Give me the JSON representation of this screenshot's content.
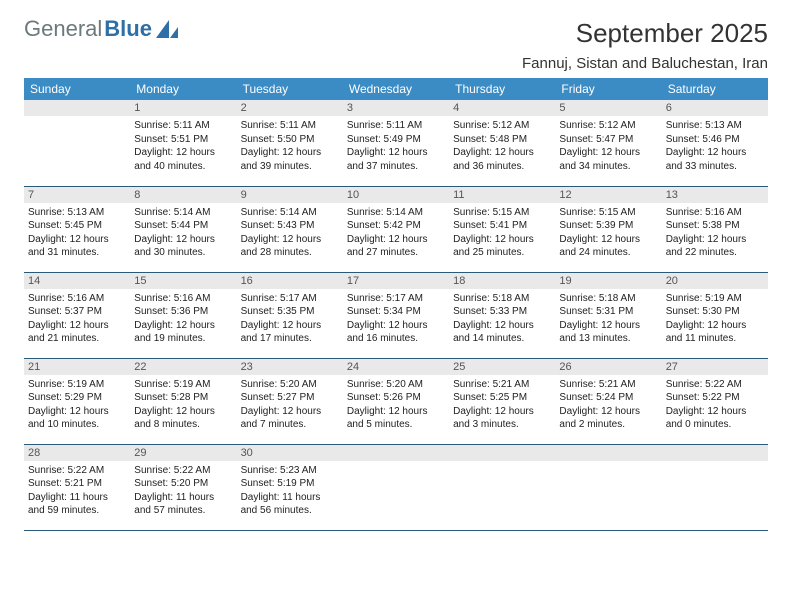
{
  "brand": {
    "part1": "General",
    "part2": "Blue"
  },
  "title": "September 2025",
  "location": "Fannuj, Sistan and Baluchestan, Iran",
  "weekdays": [
    "Sunday",
    "Monday",
    "Tuesday",
    "Wednesday",
    "Thursday",
    "Friday",
    "Saturday"
  ],
  "colors": {
    "header_bg": "#3b8bc4",
    "header_text": "#ffffff",
    "daynum_bg": "#e9e9e9",
    "row_border": "#2a5a7a",
    "logo_gray": "#6c7a7d",
    "logo_blue": "#2f6fa7"
  },
  "start_offset": 1,
  "days": [
    {
      "n": "1",
      "sunrise": "5:11 AM",
      "sunset": "5:51 PM",
      "daylight": "12 hours and 40 minutes."
    },
    {
      "n": "2",
      "sunrise": "5:11 AM",
      "sunset": "5:50 PM",
      "daylight": "12 hours and 39 minutes."
    },
    {
      "n": "3",
      "sunrise": "5:11 AM",
      "sunset": "5:49 PM",
      "daylight": "12 hours and 37 minutes."
    },
    {
      "n": "4",
      "sunrise": "5:12 AM",
      "sunset": "5:48 PM",
      "daylight": "12 hours and 36 minutes."
    },
    {
      "n": "5",
      "sunrise": "5:12 AM",
      "sunset": "5:47 PM",
      "daylight": "12 hours and 34 minutes."
    },
    {
      "n": "6",
      "sunrise": "5:13 AM",
      "sunset": "5:46 PM",
      "daylight": "12 hours and 33 minutes."
    },
    {
      "n": "7",
      "sunrise": "5:13 AM",
      "sunset": "5:45 PM",
      "daylight": "12 hours and 31 minutes."
    },
    {
      "n": "8",
      "sunrise": "5:14 AM",
      "sunset": "5:44 PM",
      "daylight": "12 hours and 30 minutes."
    },
    {
      "n": "9",
      "sunrise": "5:14 AM",
      "sunset": "5:43 PM",
      "daylight": "12 hours and 28 minutes."
    },
    {
      "n": "10",
      "sunrise": "5:14 AM",
      "sunset": "5:42 PM",
      "daylight": "12 hours and 27 minutes."
    },
    {
      "n": "11",
      "sunrise": "5:15 AM",
      "sunset": "5:41 PM",
      "daylight": "12 hours and 25 minutes."
    },
    {
      "n": "12",
      "sunrise": "5:15 AM",
      "sunset": "5:39 PM",
      "daylight": "12 hours and 24 minutes."
    },
    {
      "n": "13",
      "sunrise": "5:16 AM",
      "sunset": "5:38 PM",
      "daylight": "12 hours and 22 minutes."
    },
    {
      "n": "14",
      "sunrise": "5:16 AM",
      "sunset": "5:37 PM",
      "daylight": "12 hours and 21 minutes."
    },
    {
      "n": "15",
      "sunrise": "5:16 AM",
      "sunset": "5:36 PM",
      "daylight": "12 hours and 19 minutes."
    },
    {
      "n": "16",
      "sunrise": "5:17 AM",
      "sunset": "5:35 PM",
      "daylight": "12 hours and 17 minutes."
    },
    {
      "n": "17",
      "sunrise": "5:17 AM",
      "sunset": "5:34 PM",
      "daylight": "12 hours and 16 minutes."
    },
    {
      "n": "18",
      "sunrise": "5:18 AM",
      "sunset": "5:33 PM",
      "daylight": "12 hours and 14 minutes."
    },
    {
      "n": "19",
      "sunrise": "5:18 AM",
      "sunset": "5:31 PM",
      "daylight": "12 hours and 13 minutes."
    },
    {
      "n": "20",
      "sunrise": "5:19 AM",
      "sunset": "5:30 PM",
      "daylight": "12 hours and 11 minutes."
    },
    {
      "n": "21",
      "sunrise": "5:19 AM",
      "sunset": "5:29 PM",
      "daylight": "12 hours and 10 minutes."
    },
    {
      "n": "22",
      "sunrise": "5:19 AM",
      "sunset": "5:28 PM",
      "daylight": "12 hours and 8 minutes."
    },
    {
      "n": "23",
      "sunrise": "5:20 AM",
      "sunset": "5:27 PM",
      "daylight": "12 hours and 7 minutes."
    },
    {
      "n": "24",
      "sunrise": "5:20 AM",
      "sunset": "5:26 PM",
      "daylight": "12 hours and 5 minutes."
    },
    {
      "n": "25",
      "sunrise": "5:21 AM",
      "sunset": "5:25 PM",
      "daylight": "12 hours and 3 minutes."
    },
    {
      "n": "26",
      "sunrise": "5:21 AM",
      "sunset": "5:24 PM",
      "daylight": "12 hours and 2 minutes."
    },
    {
      "n": "27",
      "sunrise": "5:22 AM",
      "sunset": "5:22 PM",
      "daylight": "12 hours and 0 minutes."
    },
    {
      "n": "28",
      "sunrise": "5:22 AM",
      "sunset": "5:21 PM",
      "daylight": "11 hours and 59 minutes."
    },
    {
      "n": "29",
      "sunrise": "5:22 AM",
      "sunset": "5:20 PM",
      "daylight": "11 hours and 57 minutes."
    },
    {
      "n": "30",
      "sunrise": "5:23 AM",
      "sunset": "5:19 PM",
      "daylight": "11 hours and 56 minutes."
    }
  ],
  "labels": {
    "sunrise": "Sunrise:",
    "sunset": "Sunset:",
    "daylight": "Daylight:"
  }
}
